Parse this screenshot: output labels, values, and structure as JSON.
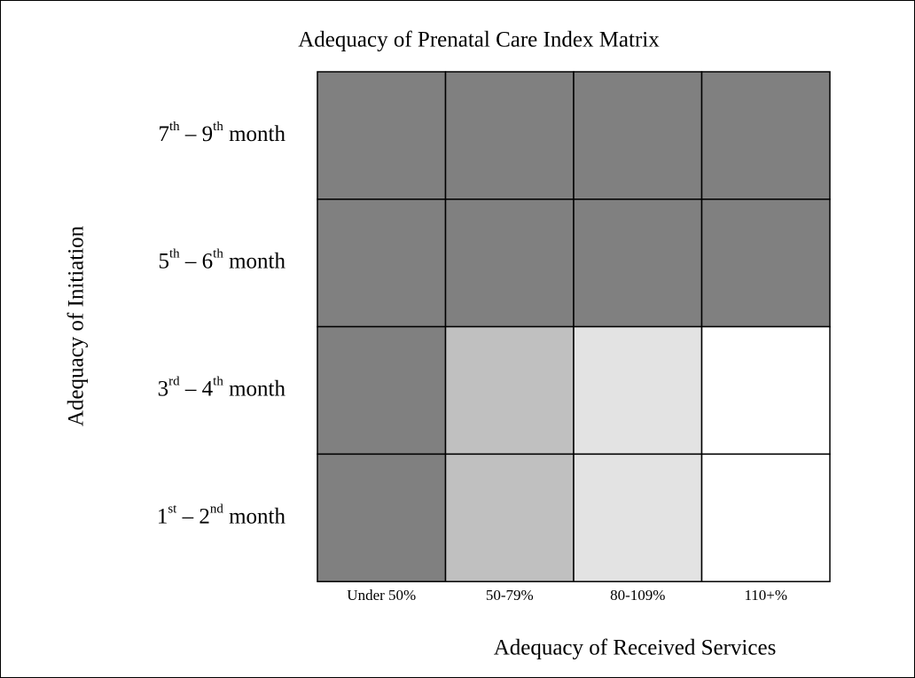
{
  "title": "Adequacy of Prenatal Care Index Matrix",
  "y_axis_title": "Adequacy of Initiation",
  "x_axis_title": "Adequacy of Received Services",
  "rows": [
    {
      "parts": [
        "7",
        "th",
        " – ",
        "9",
        "th",
        " month"
      ]
    },
    {
      "parts": [
        "5",
        "th",
        " – ",
        "6",
        "th",
        " month"
      ]
    },
    {
      "parts": [
        "3",
        "rd",
        " – ",
        "4",
        "th",
        " month"
      ]
    },
    {
      "parts": [
        "1",
        "st",
        " – ",
        "2",
        "nd",
        " month"
      ]
    }
  ],
  "columns": [
    "Under 50%",
    "50-79%",
    "80-109%",
    "110+%"
  ],
  "cells": [
    [
      "#808080",
      "#808080",
      "#808080",
      "#808080"
    ],
    [
      "#808080",
      "#808080",
      "#808080",
      "#808080"
    ],
    [
      "#808080",
      "#c0c0c0",
      "#e3e3e3",
      "#ffffff"
    ],
    [
      "#808080",
      "#c0c0c0",
      "#e3e3e3",
      "#ffffff"
    ]
  ]
}
